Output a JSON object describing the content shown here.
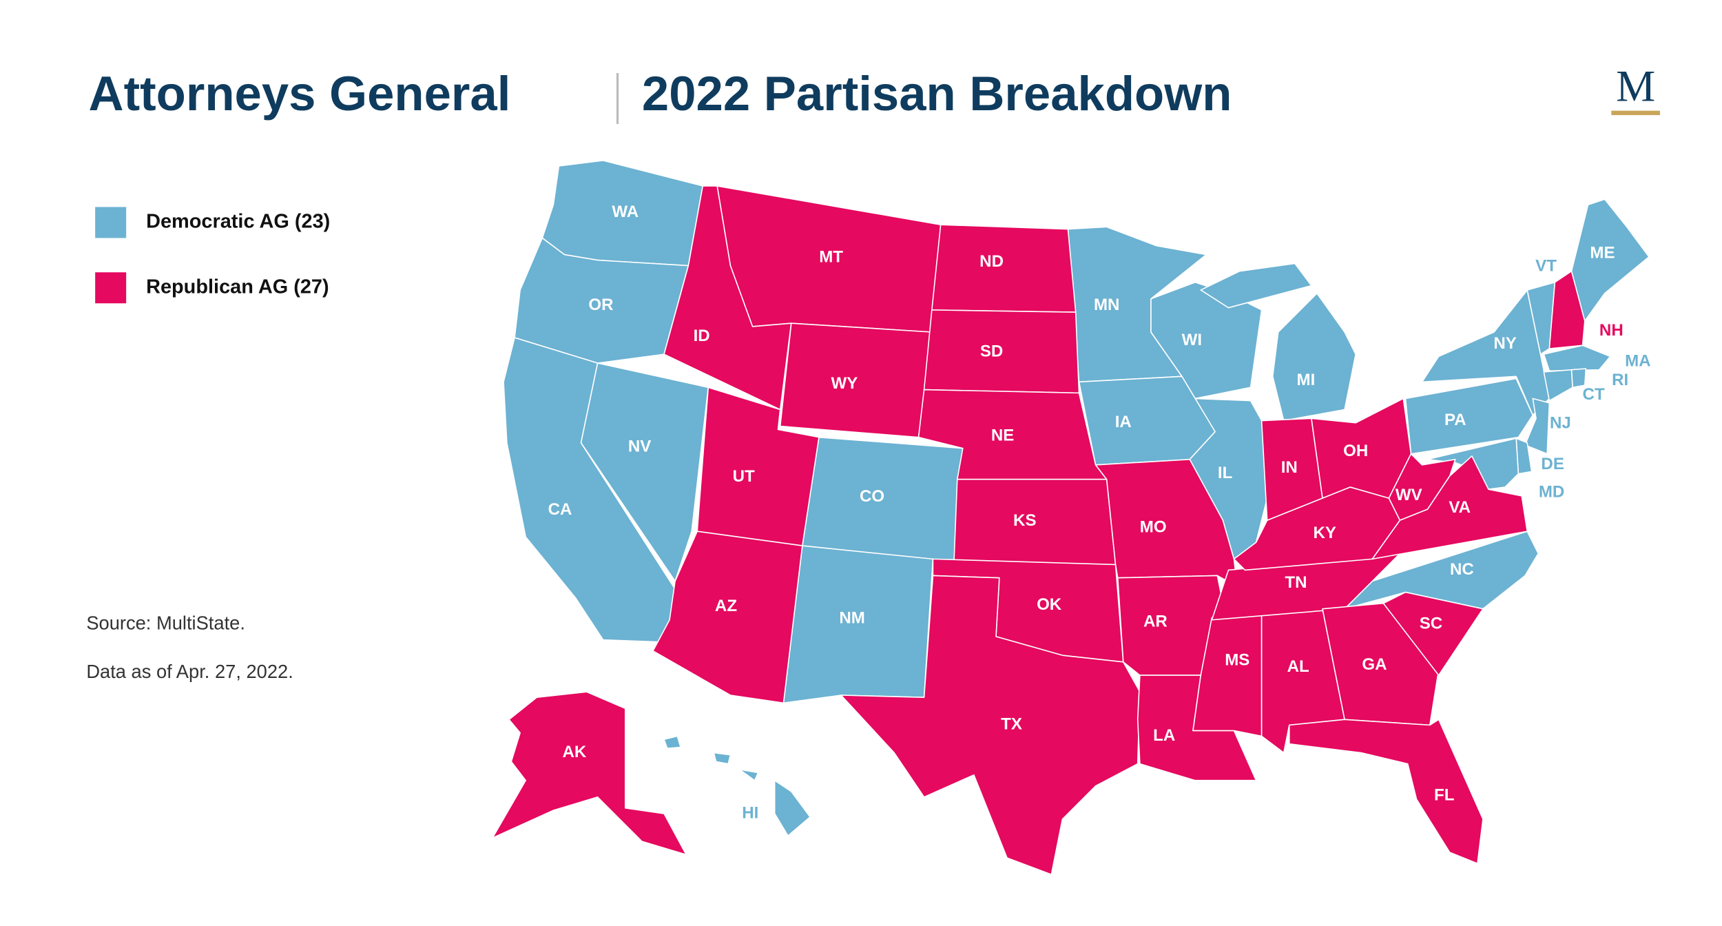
{
  "header": {
    "title_left": "Attorneys General",
    "title_right": "2022 Partisan Breakdown",
    "logo": "M"
  },
  "legend": [
    {
      "label": "Democratic AG (23)",
      "color": "#6cb2d2",
      "states": [
        "WA",
        "OR",
        "CA",
        "NV",
        "CO",
        "NM",
        "MN",
        "IA",
        "WI",
        "MI",
        "IL",
        "NY",
        "VT",
        "ME",
        "MA",
        "RI",
        "CT",
        "NJ",
        "PA",
        "DE",
        "MD",
        "NC",
        "HI"
      ]
    },
    {
      "label": "Republican AG (27)",
      "color": "#e5095f",
      "states": [
        "MT",
        "ID",
        "WY",
        "UT",
        "AZ",
        "ND",
        "SD",
        "NE",
        "KS",
        "OK",
        "TX",
        "MO",
        "AR",
        "LA",
        "MS",
        "AL",
        "TN",
        "KY",
        "IN",
        "OH",
        "WV",
        "VA",
        "GA",
        "SC",
        "FL",
        "NH",
        "AK"
      ]
    }
  ],
  "source": "Source: MultiState.",
  "note": "Data as of Apr. 27, 2022."
}
